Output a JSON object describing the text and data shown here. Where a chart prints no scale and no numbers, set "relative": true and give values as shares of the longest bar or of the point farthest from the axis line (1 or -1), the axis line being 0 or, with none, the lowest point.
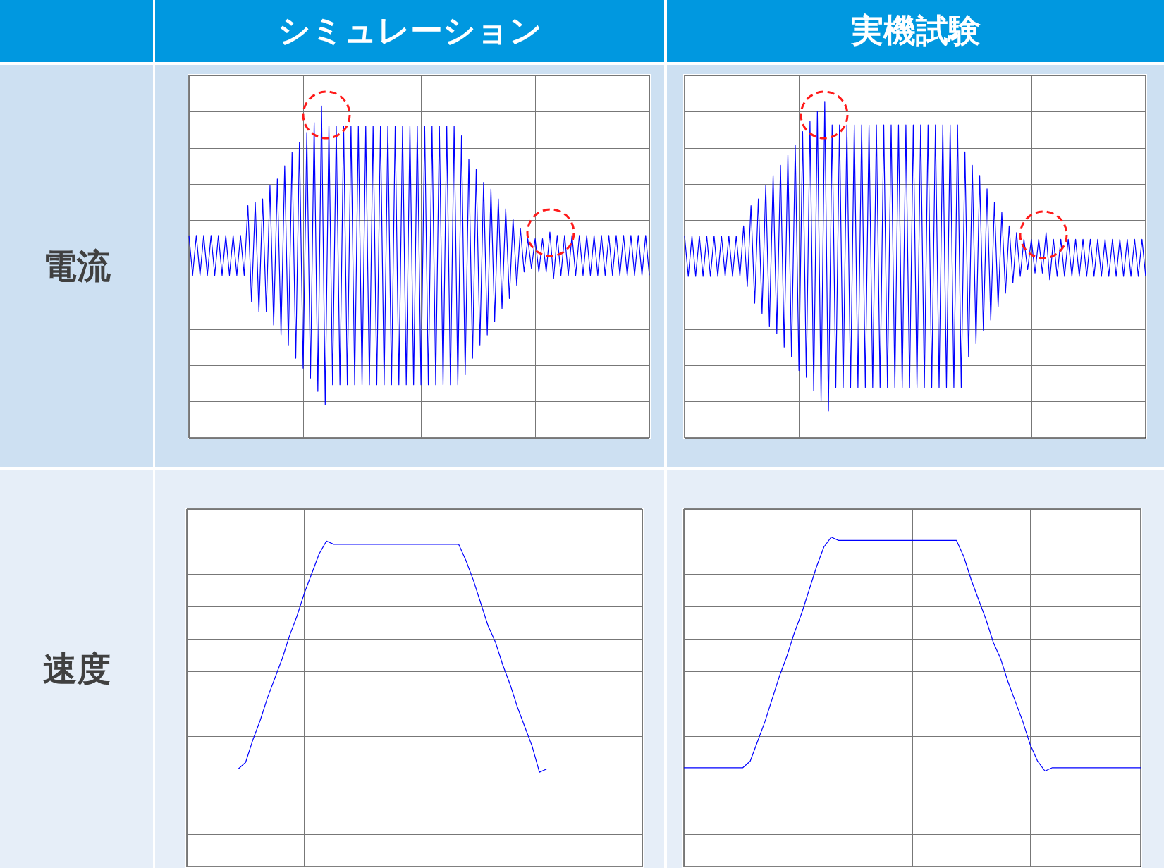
{
  "chart_data": [
    {
      "type": "line",
      "title": "シミュレーション",
      "ylabel": "電流",
      "relative": true,
      "grid": true,
      "categories": [
        null,
        null,
        null,
        null,
        null,
        null,
        null,
        null,
        null,
        null,
        null,
        null,
        null,
        null,
        null,
        null,
        null,
        null,
        null,
        null,
        null,
        null,
        null,
        null,
        null,
        null,
        null,
        null,
        null,
        null,
        null,
        null,
        null,
        null,
        null,
        null,
        null,
        null,
        null,
        null,
        null,
        null,
        null,
        null,
        null,
        null,
        null,
        null,
        null,
        null,
        null,
        null,
        null,
        null,
        null,
        null,
        null,
        null,
        null,
        null,
        null,
        null,
        null,
        null,
        null,
        null,
        null,
        null,
        null,
        null,
        null,
        null,
        null,
        null,
        null,
        null,
        null,
        null,
        null,
        null,
        null,
        null,
        null,
        null,
        null,
        null,
        null,
        null,
        null,
        null,
        null,
        null,
        null,
        null,
        null,
        null,
        null,
        null,
        null,
        null,
        null,
        null,
        null,
        null,
        null,
        null,
        null,
        null,
        null,
        null,
        null,
        null,
        null,
        null,
        null,
        null,
        null,
        null,
        null,
        null,
        null,
        null,
        null,
        null,
        null,
        null
      ],
      "series": [
        {
          "color": "#0000ff",
          "values": [
            0.61,
            0.49,
            0.61,
            0.49,
            0.61,
            0.49,
            0.61,
            0.49,
            0.61,
            0.49,
            0.61,
            0.49,
            0.61,
            0.49,
            0.61,
            0.49,
            0.7,
            0.41,
            0.71,
            0.38,
            0.72,
            0.38,
            0.76,
            0.34,
            0.78,
            0.31,
            0.82,
            0.28,
            0.86,
            0.24,
            0.89,
            0.21,
            0.92,
            0.18,
            0.95,
            0.14,
            1,
            0.1,
            0.94,
            0.16,
            0.94,
            0.16,
            0.94,
            0.16,
            0.94,
            0.16,
            0.94,
            0.16,
            0.94,
            0.16,
            0.94,
            0.16,
            0.94,
            0.16,
            0.94,
            0.16,
            0.94,
            0.16,
            0.94,
            0.16,
            0.94,
            0.16,
            0.94,
            0.16,
            0.94,
            0.16,
            0.94,
            0.16,
            0.94,
            0.16,
            0.94,
            0.16,
            0.94,
            0.16,
            0.91,
            0.19,
            0.84,
            0.24,
            0.81,
            0.28,
            0.77,
            0.31,
            0.75,
            0.35,
            0.72,
            0.39,
            0.69,
            0.42,
            0.66,
            0.46,
            0.63,
            0.5,
            0.6,
            0.51,
            0.6,
            0.5,
            0.6,
            0.5,
            0.62,
            0.48,
            0.61,
            0.49,
            0.61,
            0.49,
            0.61,
            0.49,
            0.61,
            0.49,
            0.61,
            0.49,
            0.61,
            0.49,
            0.61,
            0.49,
            0.61,
            0.49,
            0.61,
            0.49,
            0.61,
            0.49,
            0.61,
            0.49,
            0.61,
            0.49,
            0.61,
            0.49
          ]
        }
      ]
    },
    {
      "type": "line",
      "title": "実機試験",
      "relative": true,
      "grid": true,
      "categories": [
        null,
        null,
        null,
        null,
        null,
        null,
        null,
        null,
        null,
        null,
        null,
        null,
        null,
        null,
        null,
        null,
        null,
        null,
        null,
        null,
        null,
        null,
        null,
        null,
        null,
        null,
        null,
        null,
        null,
        null,
        null,
        null,
        null,
        null,
        null,
        null,
        null,
        null,
        null,
        null,
        null,
        null,
        null,
        null,
        null,
        null,
        null,
        null,
        null,
        null,
        null,
        null,
        null,
        null,
        null,
        null,
        null,
        null,
        null,
        null,
        null,
        null,
        null,
        null,
        null,
        null,
        null,
        null,
        null,
        null,
        null,
        null,
        null,
        null,
        null,
        null,
        null,
        null,
        null,
        null,
        null,
        null,
        null,
        null,
        null,
        null,
        null,
        null,
        null,
        null,
        null,
        null,
        null,
        null,
        null,
        null,
        null,
        null,
        null,
        null,
        null,
        null,
        null,
        null,
        null,
        null,
        null,
        null,
        null,
        null,
        null,
        null,
        null,
        null,
        null,
        null,
        null,
        null,
        null,
        null,
        null,
        null,
        null,
        null,
        null,
        null
      ],
      "series": [
        {
          "color": "#0000ff",
          "values": [
            0.6,
            0.48,
            0.6,
            0.48,
            0.6,
            0.48,
            0.6,
            0.48,
            0.6,
            0.48,
            0.6,
            0.48,
            0.6,
            0.48,
            0.6,
            0.48,
            0.63,
            0.45,
            0.69,
            0.4,
            0.71,
            0.37,
            0.75,
            0.33,
            0.78,
            0.31,
            0.81,
            0.27,
            0.84,
            0.24,
            0.87,
            0.2,
            0.91,
            0.18,
            0.94,
            0.14,
            0.97,
            0.11,
            1,
            0.08,
            0.93,
            0.15,
            0.93,
            0.15,
            0.93,
            0.15,
            0.93,
            0.15,
            0.93,
            0.15,
            0.93,
            0.15,
            0.93,
            0.15,
            0.93,
            0.15,
            0.93,
            0.15,
            0.93,
            0.15,
            0.93,
            0.15,
            0.93,
            0.15,
            0.93,
            0.15,
            0.93,
            0.15,
            0.93,
            0.15,
            0.93,
            0.15,
            0.93,
            0.15,
            0.93,
            0.15,
            0.85,
            0.24,
            0.81,
            0.28,
            0.78,
            0.32,
            0.74,
            0.35,
            0.7,
            0.39,
            0.67,
            0.43,
            0.63,
            0.46,
            0.61,
            0.48,
            0.59,
            0.5,
            0.59,
            0.49,
            0.59,
            0.49,
            0.61,
            0.47,
            0.59,
            0.48,
            0.59,
            0.48,
            0.59,
            0.48,
            0.59,
            0.48,
            0.59,
            0.48,
            0.59,
            0.48,
            0.59,
            0.48,
            0.59,
            0.48,
            0.59,
            0.48,
            0.59,
            0.48,
            0.59,
            0.48,
            0.59,
            0.48,
            0.59,
            0.48
          ]
        }
      ]
    },
    {
      "type": "line",
      "ylabel": "速度",
      "relative": true,
      "grid": true,
      "categories": [
        null,
        null,
        null,
        null,
        null,
        null,
        null,
        null,
        null,
        null,
        null,
        null,
        null,
        null,
        null,
        null,
        null,
        null,
        null,
        null,
        null,
        null,
        null,
        null,
        null,
        null,
        null,
        null,
        null,
        null,
        null,
        null,
        null,
        null,
        null,
        null,
        null,
        null,
        null,
        null,
        null,
        null,
        null,
        null,
        null,
        null,
        null,
        null,
        null,
        null,
        null,
        null,
        null,
        null,
        null,
        null,
        null,
        null,
        null,
        null,
        null,
        null,
        null
      ],
      "series": [
        {
          "color": "#0000ff",
          "values": [
            0.3,
            0.3,
            0.3,
            0.3,
            0.3,
            0.3,
            0.3,
            0.3,
            0.32,
            0.39,
            0.45,
            0.52,
            0.58,
            0.64,
            0.71,
            0.77,
            0.84,
            0.9,
            0.96,
            1,
            0.99,
            0.99,
            0.99,
            0.99,
            0.99,
            0.99,
            0.99,
            0.99,
            0.99,
            0.99,
            0.99,
            0.99,
            0.99,
            0.99,
            0.99,
            0.99,
            0.99,
            0.99,
            0.94,
            0.88,
            0.81,
            0.74,
            0.69,
            0.62,
            0.56,
            0.49,
            0.43,
            0.37,
            0.29,
            0.3,
            0.3,
            0.3,
            0.3,
            0.3,
            0.3,
            0.3,
            0.3,
            0.3,
            0.3,
            0.3,
            0.3,
            0.3,
            0.3
          ]
        }
      ]
    },
    {
      "type": "line",
      "relative": true,
      "grid": true,
      "categories": [
        null,
        null,
        null,
        null,
        null,
        null,
        null,
        null,
        null,
        null,
        null,
        null,
        null,
        null,
        null,
        null,
        null,
        null,
        null,
        null,
        null,
        null,
        null,
        null,
        null,
        null,
        null,
        null,
        null,
        null,
        null,
        null,
        null,
        null,
        null,
        null,
        null,
        null,
        null,
        null,
        null,
        null,
        null,
        null,
        null,
        null,
        null,
        null,
        null,
        null,
        null,
        null,
        null,
        null,
        null,
        null,
        null,
        null,
        null,
        null,
        null,
        null,
        null
      ],
      "series": [
        {
          "color": "#0000ff",
          "values": [
            0.3,
            0.3,
            0.3,
            0.3,
            0.3,
            0.3,
            0.3,
            0.3,
            0.3,
            0.32,
            0.38,
            0.44,
            0.51,
            0.58,
            0.64,
            0.71,
            0.77,
            0.84,
            0.91,
            0.97,
            1,
            0.99,
            0.99,
            0.99,
            0.99,
            0.99,
            0.99,
            0.99,
            0.99,
            0.99,
            0.99,
            0.99,
            0.99,
            0.99,
            0.99,
            0.99,
            0.99,
            0.99,
            0.94,
            0.87,
            0.81,
            0.75,
            0.68,
            0.63,
            0.56,
            0.5,
            0.44,
            0.37,
            0.32,
            0.29,
            0.3,
            0.3,
            0.3,
            0.3,
            0.3,
            0.3,
            0.3,
            0.3,
            0.3,
            0.3,
            0.3,
            0.3,
            0.3
          ]
        }
      ]
    }
  ]
}
